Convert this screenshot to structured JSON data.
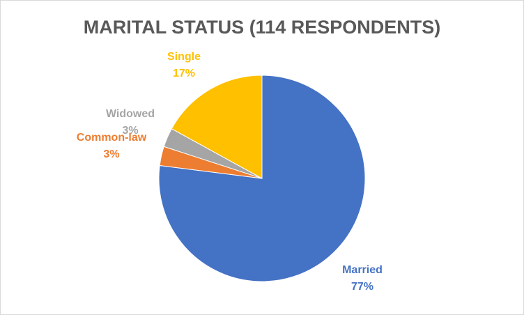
{
  "chart_data": {
    "type": "pie",
    "title": "MARITAL STATUS (114 RESPONDENTS)",
    "categories": [
      "Married",
      "Common-law",
      "Widowed",
      "Single"
    ],
    "values": [
      77,
      3,
      3,
      17
    ],
    "value_labels": [
      "77%",
      "3%",
      "3%",
      "17%"
    ],
    "colors": [
      "#4472c4",
      "#ed7d31",
      "#a5a5a5",
      "#ffc000"
    ]
  }
}
